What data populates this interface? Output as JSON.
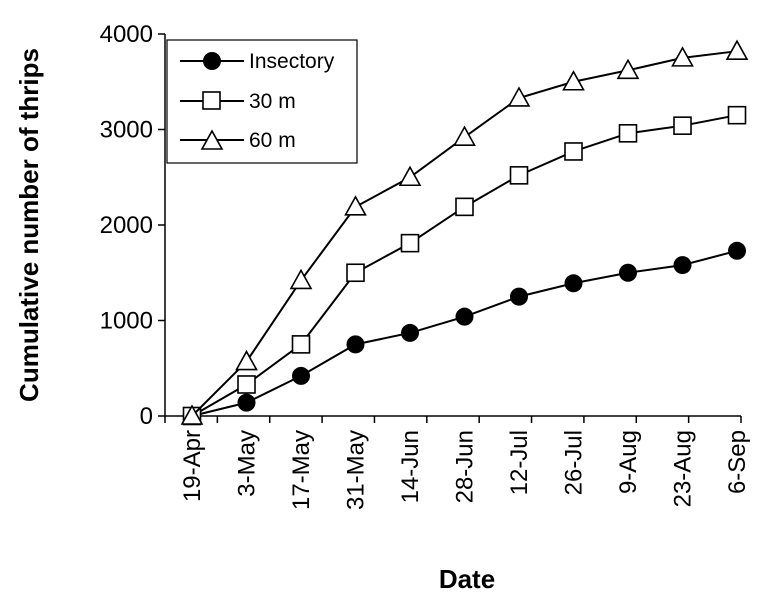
{
  "chart_data": {
    "type": "line",
    "xlabel": "Date",
    "ylabel": "Cumulative number of thrips",
    "ylim": [
      0,
      4000
    ],
    "yticks": [
      0,
      1000,
      2000,
      3000,
      4000
    ],
    "categories": [
      "19-Apr",
      "3-May",
      "17-May",
      "31-May",
      "14-Jun",
      "28-Jun",
      "12-Jul",
      "26-Jul",
      "9-Aug",
      "23-Aug",
      "6-Sep"
    ],
    "grid": false,
    "legend_position": "top-left",
    "series": [
      {
        "name": "Insectory",
        "marker": "filled-circle",
        "values": [
          0,
          140,
          420,
          750,
          870,
          1040,
          1250,
          1390,
          1500,
          1580,
          1730
        ]
      },
      {
        "name": "30 m",
        "marker": "open-square",
        "values": [
          0,
          330,
          750,
          1500,
          1810,
          2190,
          2520,
          2770,
          2960,
          3040,
          3150
        ]
      },
      {
        "name": "60 m",
        "marker": "open-triangle",
        "values": [
          0,
          570,
          1420,
          2190,
          2500,
          2920,
          3330,
          3500,
          3620,
          3750,
          3820
        ]
      }
    ],
    "colors": {
      "line": "#000000",
      "marker_fill": "#000000",
      "open_marker_fill": "#ffffff"
    }
  }
}
